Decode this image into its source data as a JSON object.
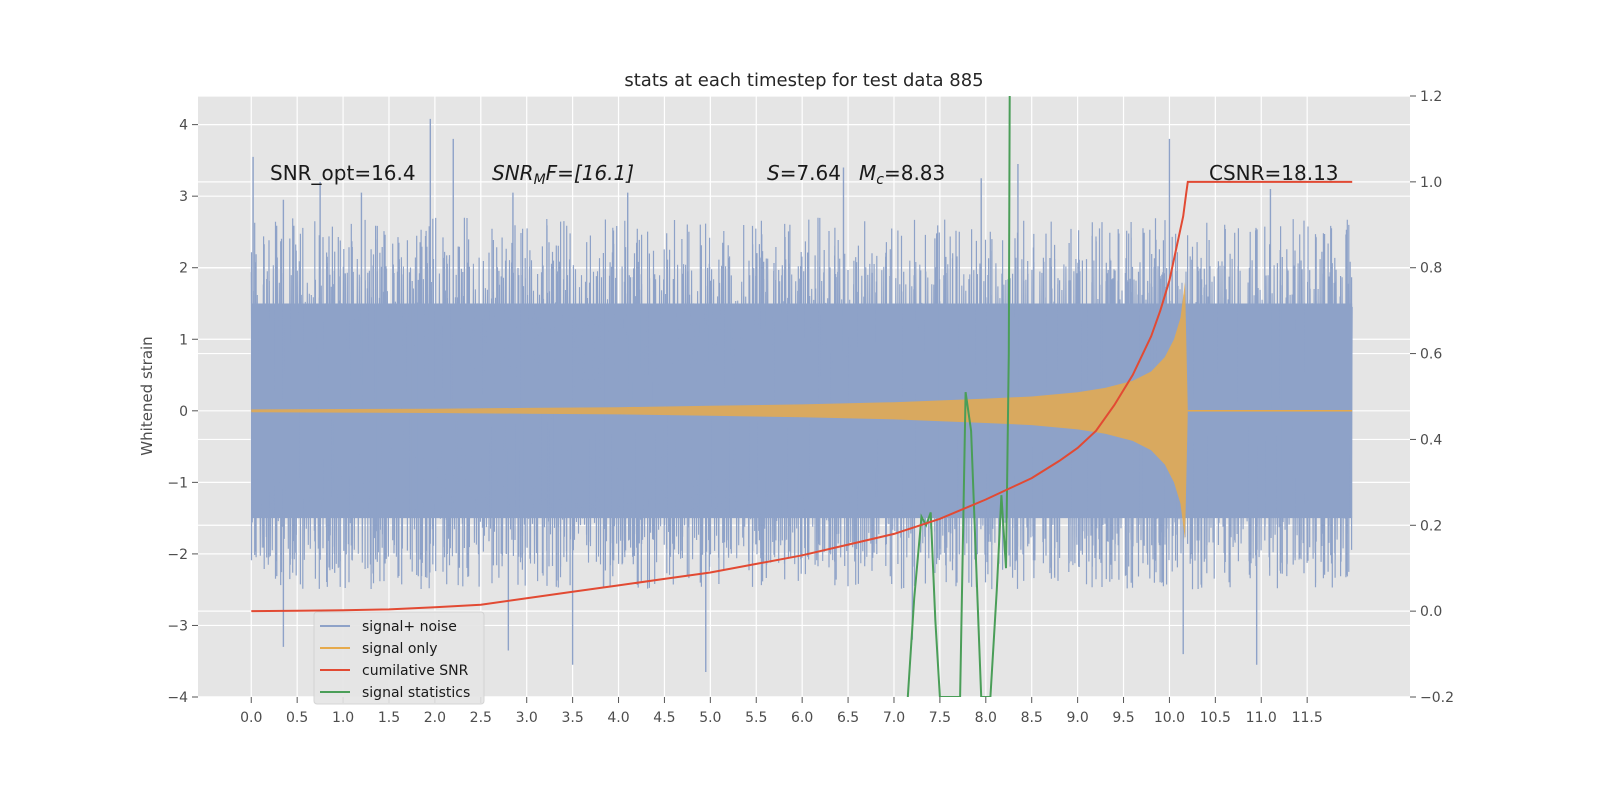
{
  "chart_data": {
    "type": "line",
    "title": "stats at each timestep for test data 885",
    "ylabel": "Whitened strain",
    "xlabel": "",
    "xlim": [
      -0.58,
      12.62
    ],
    "ylim": [
      -4,
      4.4
    ],
    "y2lim": [
      -0.2,
      1.2
    ],
    "x_ticks": [
      0.0,
      0.5,
      1.0,
      1.5,
      2.0,
      2.5,
      3.0,
      3.5,
      4.0,
      4.5,
      5.0,
      5.5,
      6.0,
      6.5,
      7.0,
      7.5,
      8.0,
      8.5,
      9.0,
      9.5,
      10.0,
      10.5,
      11.0,
      11.5
    ],
    "x_tick_labels": [
      "0.0",
      "0.5",
      "1.0",
      "1.5",
      "2.0",
      "2.5",
      "3.0",
      "3.5",
      "4.0",
      "4.5",
      "5.0",
      "5.5",
      "6.0",
      "6.5",
      "7.0",
      "7.5",
      "8.0",
      "8.5",
      "9.0",
      "9.5",
      "10.0",
      "10.5",
      "11.0",
      "11.5"
    ],
    "y_ticks": [
      -4,
      -3,
      -2,
      -1,
      0,
      1,
      2,
      3,
      4
    ],
    "y_tick_labels": [
      "−4",
      "−3",
      "−2",
      "−1",
      "0",
      "1",
      "2",
      "3",
      "4"
    ],
    "y2_ticks": [
      -0.2,
      0.0,
      0.2,
      0.4,
      0.6,
      0.8,
      1.0,
      1.2
    ],
    "y2_tick_labels": [
      "−0.2",
      "0.0",
      "0.2",
      "0.4",
      "0.6",
      "0.8",
      "1.0",
      "1.2"
    ],
    "grid": true,
    "legend_position": "lower-left",
    "annotations": {
      "snr_opt": "SNR_opt=16.4",
      "snr_mf_main": "SNR",
      "snr_mf_sub": "M",
      "snr_mf_rest": "F=[16.1]",
      "s_var": "S",
      "s_val": "=7.64",
      "mc_var": "M",
      "mc_sub": "c",
      "mc_val": "=8.83",
      "csnr": "CSNR=18.13"
    },
    "noise_envelope": {
      "x_start": 0.0,
      "x_end": 11.99,
      "typical_amplitude": 1.6,
      "peak_spikes": [
        {
          "x": 0.02,
          "y": 3.55
        },
        {
          "x": 0.35,
          "y": 2.95
        },
        {
          "x": 0.75,
          "y": 3.2
        },
        {
          "x": 1.2,
          "y": 3.05
        },
        {
          "x": 1.95,
          "y": 4.08
        },
        {
          "x": 2.2,
          "y": 3.8
        },
        {
          "x": 2.85,
          "y": 3.05
        },
        {
          "x": 4.1,
          "y": 3.05
        },
        {
          "x": 6.45,
          "y": 3.4
        },
        {
          "x": 7.95,
          "y": 3.25
        },
        {
          "x": 8.35,
          "y": 3.45
        },
        {
          "x": 10.0,
          "y": 3.8
        },
        {
          "x": 11.1,
          "y": 3.1
        }
      ],
      "trough_spikes": [
        {
          "x": 0.35,
          "y": -3.3
        },
        {
          "x": 2.8,
          "y": -3.35
        },
        {
          "x": 3.5,
          "y": -3.55
        },
        {
          "x": 4.95,
          "y": -3.65
        },
        {
          "x": 7.2,
          "y": -3.2
        },
        {
          "x": 10.15,
          "y": -3.4
        },
        {
          "x": 10.95,
          "y": -3.55
        }
      ]
    },
    "series": [
      {
        "name": "signal+ noise",
        "color": "#8ea2c8",
        "axis": "left",
        "style": "filled-band"
      },
      {
        "name": "signal only",
        "color": "#e6aa4c",
        "axis": "left",
        "style": "chirp-envelope",
        "x": [
          0.0,
          1.0,
          2.0,
          3.0,
          4.0,
          5.0,
          6.0,
          7.0,
          8.0,
          8.5,
          9.0,
          9.3,
          9.6,
          9.8,
          9.95,
          10.05,
          10.12,
          10.17,
          10.2
        ],
        "amplitude": [
          0.02,
          0.025,
          0.03,
          0.04,
          0.05,
          0.07,
          0.09,
          0.12,
          0.17,
          0.2,
          0.26,
          0.32,
          0.42,
          0.55,
          0.75,
          1.0,
          1.3,
          1.8,
          0.0
        ]
      },
      {
        "name": "cumilative SNR",
        "color": "#e24a33",
        "axis": "right",
        "x": [
          0.0,
          0.5,
          1.0,
          1.5,
          2.0,
          2.5,
          3.0,
          3.5,
          4.0,
          4.5,
          5.0,
          5.5,
          6.0,
          6.5,
          7.0,
          7.5,
          8.0,
          8.5,
          8.8,
          9.0,
          9.2,
          9.4,
          9.6,
          9.8,
          9.9,
          10.0,
          10.05,
          10.1,
          10.15,
          10.18,
          10.2,
          11.99
        ],
        "y": [
          0.0,
          0.001,
          0.002,
          0.004,
          0.009,
          0.015,
          0.03,
          0.045,
          0.06,
          0.075,
          0.09,
          0.11,
          0.13,
          0.155,
          0.18,
          0.215,
          0.26,
          0.31,
          0.35,
          0.38,
          0.42,
          0.48,
          0.55,
          0.64,
          0.7,
          0.77,
          0.82,
          0.87,
          0.92,
          0.97,
          1.0,
          1.0
        ]
      },
      {
        "name": "signal statistics",
        "color": "#4a9e58",
        "axis": "right",
        "x": [
          7.15,
          7.22,
          7.3,
          7.35,
          7.4,
          7.45,
          7.5,
          7.6,
          7.72,
          7.78,
          7.84,
          7.95,
          8.05,
          8.12,
          8.17,
          8.22,
          8.25,
          8.26
        ],
        "y": [
          -0.2,
          0.03,
          0.22,
          0.2,
          0.23,
          -0.02,
          -0.2,
          -0.2,
          -0.2,
          0.51,
          0.42,
          -0.2,
          -0.2,
          0.05,
          0.27,
          0.1,
          0.6,
          1.2
        ]
      }
    ]
  }
}
